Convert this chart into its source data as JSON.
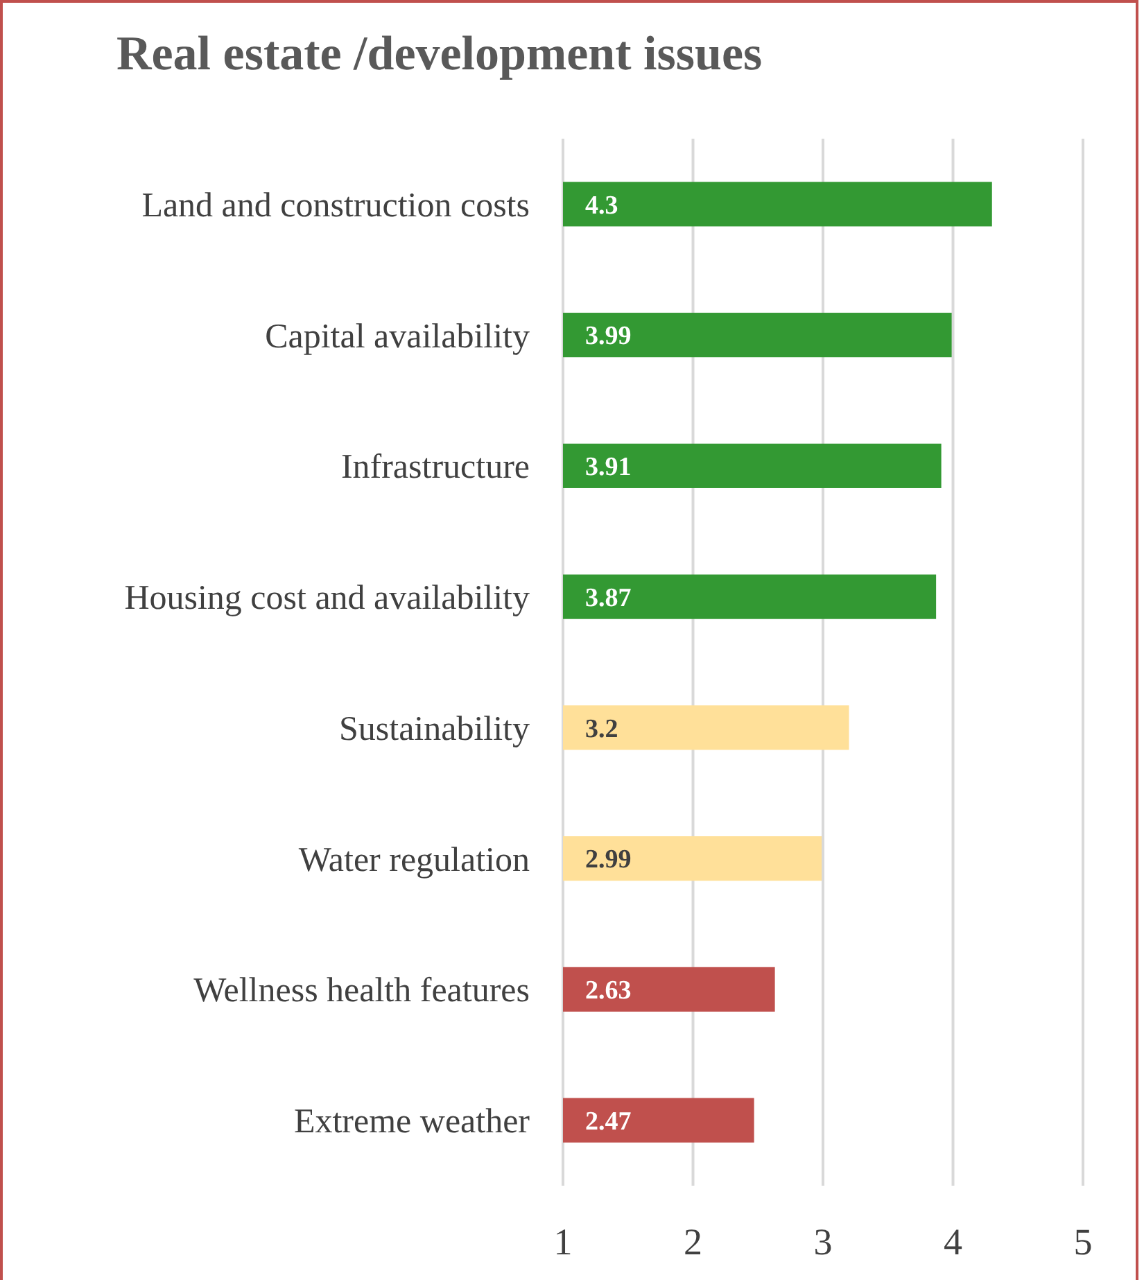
{
  "chart_data": {
    "type": "bar",
    "orientation": "horizontal",
    "title": "Real estate /development issues",
    "categories": [
      "Land and construction costs",
      "Capital availability",
      "Infrastructure",
      "Housing cost and availability",
      "Sustainability",
      "Water regulation",
      "Wellness health features",
      "Extreme weather"
    ],
    "values": [
      4.3,
      3.99,
      3.91,
      3.87,
      3.2,
      2.99,
      2.63,
      2.47
    ],
    "colors": [
      "#339933",
      "#339933",
      "#339933",
      "#339933",
      "#ffe099",
      "#ffe099",
      "#c0504d",
      "#c0504d"
    ],
    "xlim": [
      1,
      5
    ],
    "xticks": [
      1,
      2,
      3,
      4,
      5
    ],
    "grid": "x",
    "data_labels": true
  }
}
